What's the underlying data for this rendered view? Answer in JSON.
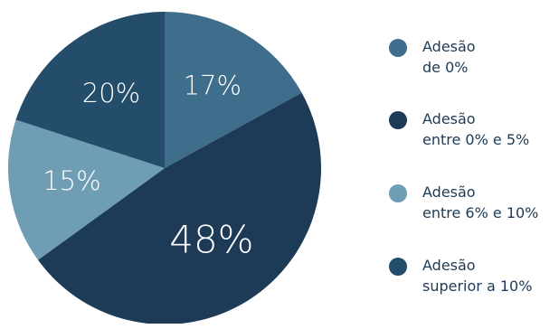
{
  "chart_data": {
    "type": "pie",
    "slices": [
      {
        "label": "17%",
        "value": 17,
        "color": "#3e6e8b",
        "legend": [
          "Adesão",
          "de 0%"
        ]
      },
      {
        "label": "48%",
        "value": 48,
        "color": "#1d3a57",
        "legend": [
          "Adesão",
          "entre 0% e 5%"
        ]
      },
      {
        "label": "15%",
        "value": 15,
        "color": "#6e9db4",
        "legend": [
          "Adesão",
          "entre 6% e 10%"
        ]
      },
      {
        "label": "20%",
        "value": 20,
        "color": "#244d6b",
        "legend": [
          "Adesão",
          "superior a 10%"
        ]
      }
    ],
    "legend_position": "right"
  }
}
